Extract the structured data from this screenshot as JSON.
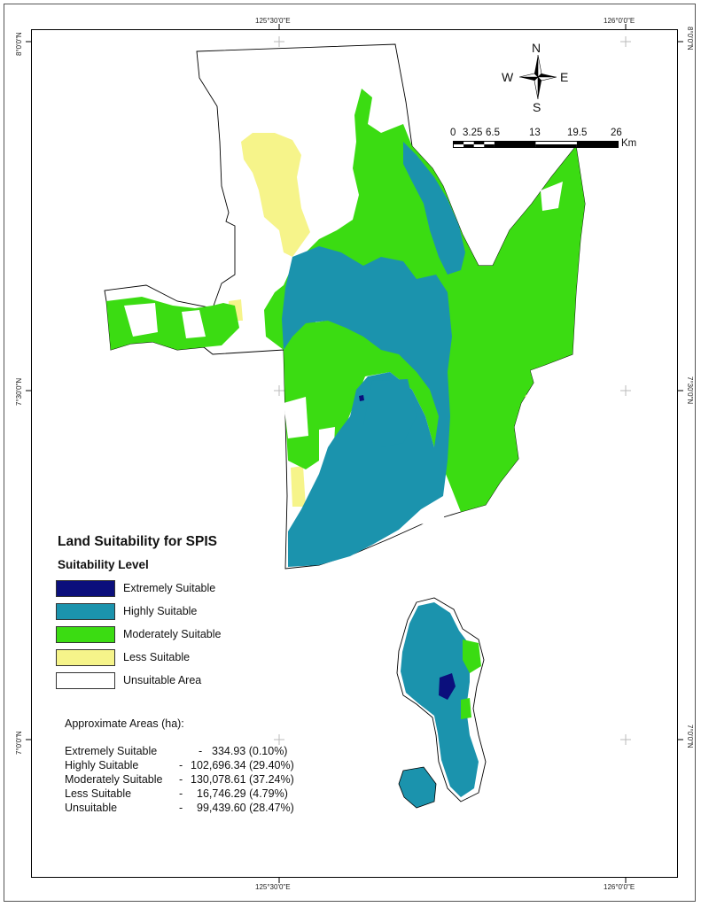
{
  "coordinates": {
    "top": [
      "125°30'0\"E",
      "126°0'0\"E"
    ],
    "bottom": [
      "125°30'0\"E",
      "126°0'0\"E"
    ],
    "left": [
      "8°0'0\"N",
      "7°30'0\"N",
      "7°0'0\"N"
    ],
    "right": [
      "8°0'0\"N",
      "7°30'0\"N",
      "7°0'0\"N"
    ]
  },
  "compass": {
    "north": "N",
    "south": "S",
    "east": "E",
    "west": "W"
  },
  "scale_bar": {
    "ticks": [
      "0",
      "3.25",
      "6.5",
      "13",
      "19.5",
      "26"
    ],
    "unit": "Km"
  },
  "legend": {
    "title": "Land Suitability for SPIS",
    "subtitle": "Suitability Level",
    "items": [
      {
        "label": "Extremely Suitable",
        "color": "#0b0f7c"
      },
      {
        "label": "Highly Suitable",
        "color": "#1b93ad"
      },
      {
        "label": "Moderately Suitable",
        "color": "#3bdc12"
      },
      {
        "label": "Less Suitable",
        "color": "#f6f48a"
      },
      {
        "label": "Unsuitable Area",
        "color": "#ffffff"
      }
    ]
  },
  "areas": {
    "heading": "Approximate Areas (ha):",
    "rows": [
      {
        "name": "Extremely Suitable",
        "value": "334.93 (0.10%)"
      },
      {
        "name": "Highly Suitable",
        "value": "102,696.34 (29.40%)"
      },
      {
        "name": "Moderately Suitable",
        "value": "130,078.61 (37.24%)"
      },
      {
        "name": "Less Suitable",
        "value": "16,746.29 (4.79%)"
      },
      {
        "name": "Unsuitable",
        "value": "99,439.60 (28.47%)"
      }
    ]
  }
}
